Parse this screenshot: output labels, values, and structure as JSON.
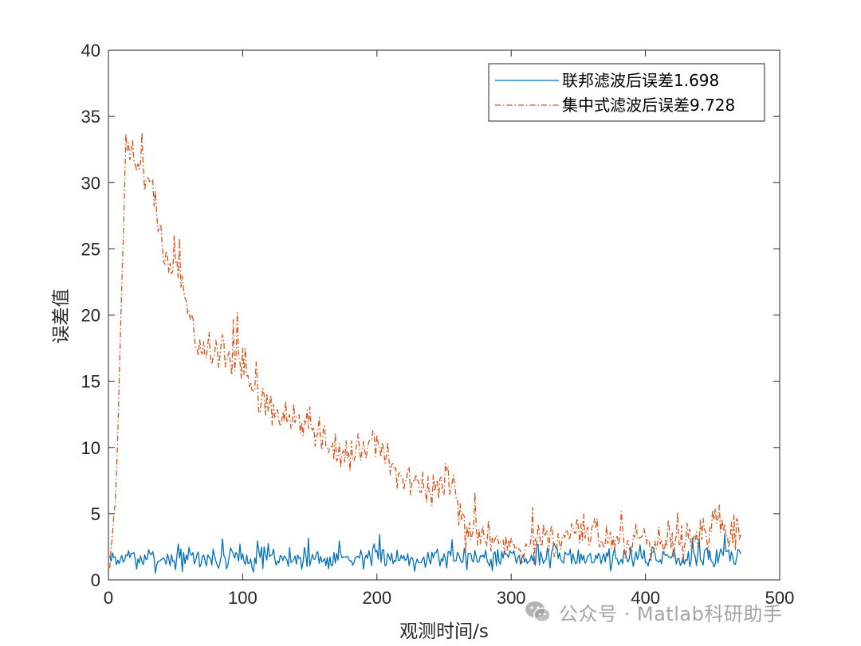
{
  "chart_data": {
    "type": "line",
    "xlabel": "观测时间/s",
    "ylabel": "误差值",
    "xlim": [
      0,
      500
    ],
    "ylim": [
      0,
      40
    ],
    "x_ticks": [
      0,
      100,
      200,
      300,
      400,
      500
    ],
    "y_ticks": [
      0,
      5,
      10,
      15,
      20,
      25,
      30,
      35,
      40
    ],
    "grid": false,
    "legend_location": "top-right",
    "series": [
      {
        "name": "联邦滤波后误差1.698",
        "color": "#0072BD",
        "line_style": "solid",
        "x_start": 1,
        "x_step": 1,
        "noise_seed": 7,
        "trend": [
          [
            1,
            1.6
          ],
          [
            100,
            1.6
          ],
          [
            200,
            1.7
          ],
          [
            300,
            1.7
          ],
          [
            471,
            1.8
          ]
        ],
        "spread": 0.75,
        "min": 0.05,
        "max": 4.6
      },
      {
        "name": "集中式滤波后误差9.728",
        "color": "#D95319",
        "line_style": "dash-dot",
        "x_start": 1,
        "x_step": 1,
        "noise_seed": 19,
        "trend": [
          [
            1,
            1.5
          ],
          [
            5,
            6
          ],
          [
            8,
            14
          ],
          [
            10,
            22
          ],
          [
            13,
            33
          ],
          [
            20,
            31.5
          ],
          [
            30,
            30.5
          ],
          [
            40,
            25
          ],
          [
            55,
            22.5
          ],
          [
            65,
            18
          ],
          [
            100,
            16
          ],
          [
            120,
            13
          ],
          [
            150,
            11.5
          ],
          [
            180,
            9
          ],
          [
            200,
            10.5
          ],
          [
            215,
            8
          ],
          [
            235,
            6.5
          ],
          [
            255,
            7.5
          ],
          [
            265,
            3.5
          ],
          [
            290,
            3.0
          ],
          [
            300,
            2.5
          ],
          [
            350,
            3.2
          ],
          [
            400,
            3.0
          ],
          [
            440,
            3.3
          ],
          [
            455,
            4.5
          ],
          [
            471,
            3.2
          ]
        ],
        "spread": 1.3,
        "min": 0.1,
        "max": 35
      }
    ]
  },
  "watermark": {
    "text": "公众号 · Matlab科研助手",
    "icon": "wechat-icon"
  }
}
